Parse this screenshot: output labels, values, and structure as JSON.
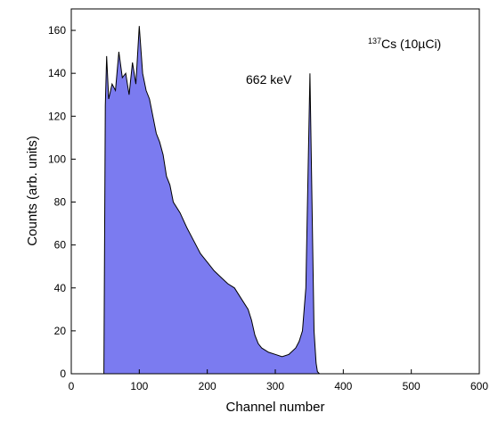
{
  "chart_data": {
    "type": "area",
    "xlabel": "Channel number",
    "ylabel": "Counts (arb. units)",
    "xlim": [
      0,
      600
    ],
    "ylim": [
      0,
      170
    ],
    "xticks": [
      0,
      100,
      200,
      300,
      400,
      500,
      600
    ],
    "yticks": [
      0,
      20,
      40,
      60,
      80,
      100,
      120,
      140,
      160
    ],
    "fill_color": "#7b7bf0",
    "line_color": "#000000",
    "annotations": {
      "peak": "662 keV",
      "source_sup": "137",
      "source_main": "Cs (10µCi)"
    },
    "series": [
      {
        "x": [
          0,
          20,
          40,
          48,
          50,
          52,
          55,
          60,
          65,
          70,
          75,
          80,
          85,
          90,
          95,
          100,
          105,
          110,
          115,
          120,
          125,
          130,
          135,
          140,
          145,
          150,
          160,
          170,
          180,
          190,
          200,
          210,
          220,
          230,
          240,
          250,
          260,
          265,
          270,
          275,
          280,
          290,
          300,
          310,
          320,
          330,
          335,
          340,
          345,
          348,
          351,
          354,
          357,
          360,
          362,
          365,
          380,
          400,
          450,
          500,
          550,
          600
        ],
        "y": [
          0,
          0,
          0,
          0,
          125,
          148,
          128,
          135,
          132,
          150,
          138,
          140,
          130,
          145,
          135,
          162,
          140,
          132,
          128,
          120,
          112,
          108,
          102,
          92,
          88,
          80,
          75,
          68,
          62,
          56,
          52,
          48,
          45,
          42,
          40,
          35,
          30,
          25,
          18,
          14,
          12,
          10,
          9,
          8,
          9,
          12,
          15,
          20,
          40,
          90,
          140,
          80,
          20,
          5,
          1,
          0,
          0,
          0,
          0,
          0,
          0,
          0
        ]
      }
    ]
  }
}
